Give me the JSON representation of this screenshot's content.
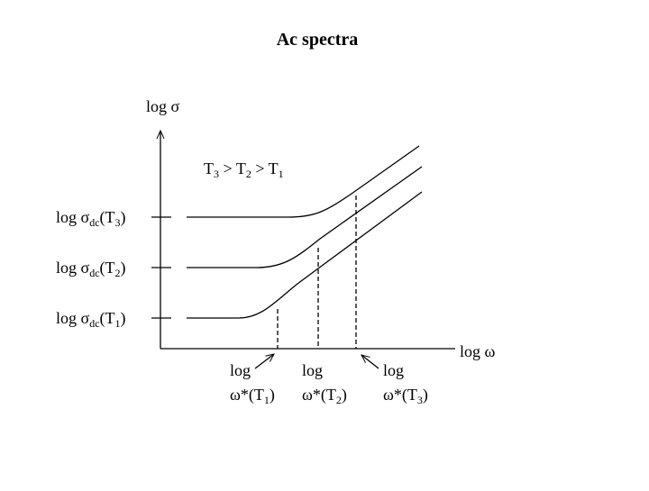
{
  "title": "Ac spectra",
  "y_axis_label": "log σ",
  "x_axis_label": "log ω",
  "condition": [
    "T",
    "3",
    " > T",
    "2",
    " > T",
    "1"
  ],
  "dc_levels": [
    [
      "log σ",
      "dc",
      "(T",
      "3",
      ")"
    ],
    [
      "log σ",
      "dc",
      "(T",
      "2",
      ")"
    ],
    [
      "log σ",
      "dc",
      "(T",
      "1",
      ")"
    ]
  ],
  "crossover_labels": [
    [
      [
        "log"
      ],
      [
        "ω*(T",
        "1",
        ")"
      ]
    ],
    [
      [
        "log"
      ],
      [
        "ω*(T",
        "2",
        ")"
      ]
    ],
    [
      [
        "log"
      ],
      [
        "ω*(T",
        "3",
        ")"
      ]
    ]
  ]
}
